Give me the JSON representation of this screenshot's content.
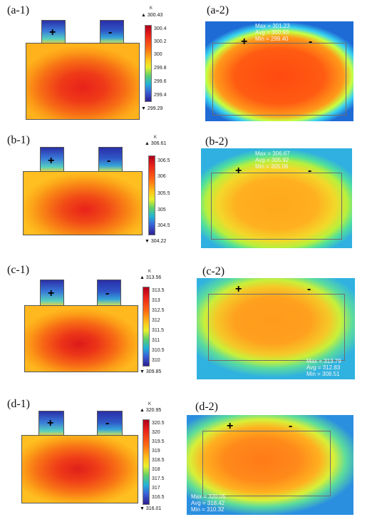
{
  "panels": [
    {
      "sim_label": "(a-1)",
      "ir_label": "(a-2)",
      "cbar": {
        "unit": "K",
        "max": "300.43",
        "min": "299.29",
        "ticks": [
          "300.4",
          "300.2",
          "300",
          "299.8",
          "299.6",
          "299.4"
        ]
      },
      "stats": [
        "Max = 301.23",
        "Avg = 300.93",
        "Min = 299.40"
      ],
      "signs": {
        "pos": "+",
        "neg": "-"
      }
    },
    {
      "sim_label": "(b-1)",
      "ir_label": "(b-2)",
      "cbar": {
        "unit": "K",
        "max": "306.61",
        "min": "304.22",
        "ticks": [
          "306.5",
          "306",
          "305.5",
          "305",
          "304.5"
        ]
      },
      "stats": [
        "Max = 306.67",
        "Avg = 305.92",
        "Min = 305.06"
      ],
      "signs": {
        "pos": "+",
        "neg": "-"
      }
    },
    {
      "sim_label": "(c-1)",
      "ir_label": "(c-2)",
      "cbar": {
        "unit": "K",
        "max": "313.56",
        "min": "309.85",
        "ticks": [
          "313.5",
          "313",
          "312.5",
          "312",
          "311.5",
          "311",
          "310.5",
          "310"
        ]
      },
      "stats": [
        "Max = 313.79",
        "Avg = 312.83",
        "Min = 308.51"
      ],
      "signs": {
        "pos": "+",
        "neg": "-"
      }
    },
    {
      "sim_label": "(d-1)",
      "ir_label": "(d-2)",
      "cbar": {
        "unit": "K",
        "max": "320.95",
        "min": "316.01",
        "ticks": [
          "320.5",
          "320",
          "319.5",
          "319",
          "318.5",
          "318",
          "317.5",
          "317",
          "316.5"
        ]
      },
      "stats": [
        "Max = 320.05",
        "Avg = 318.42",
        "Min = 310.32"
      ],
      "signs": {
        "pos": "+",
        "neg": "-"
      }
    }
  ]
}
